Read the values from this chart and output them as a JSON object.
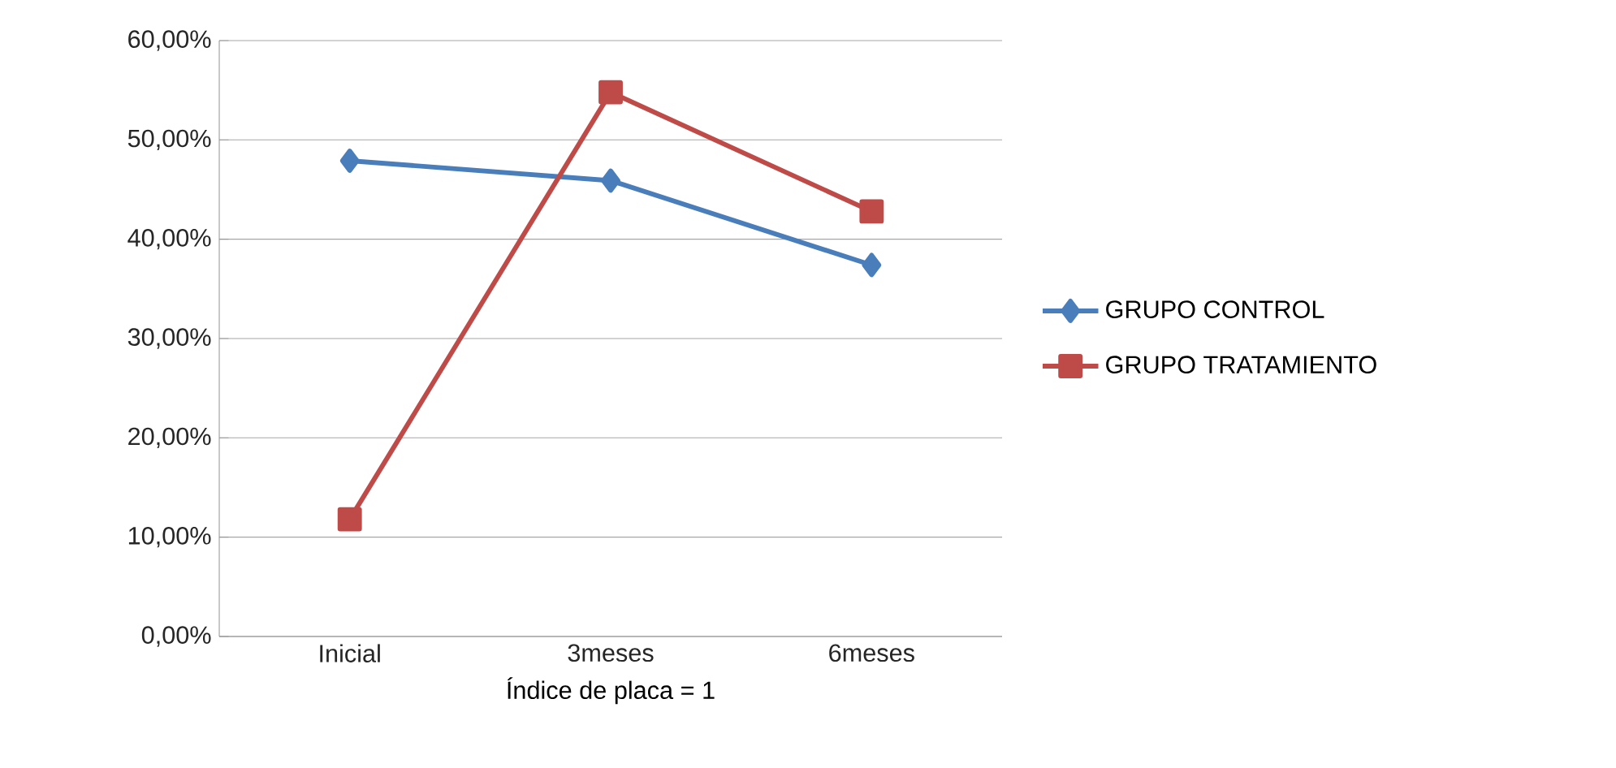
{
  "chart_data": {
    "type": "line",
    "xlabel": "Índice de placa = 1",
    "categories": [
      "Inicial",
      "3meses",
      "6meses"
    ],
    "series": [
      {
        "name": "GRUPO CONTROL",
        "color": "#4a7ebb",
        "marker": "diamond",
        "values": [
          47.9,
          45.9,
          37.4
        ]
      },
      {
        "name": "GRUPO TRATAMIENTO",
        "color": "#be4b48",
        "marker": "square",
        "values": [
          11.8,
          54.8,
          42.8
        ]
      }
    ],
    "ylim": [
      0,
      60
    ],
    "yticks": [
      {
        "value": 0,
        "label": "0,00%"
      },
      {
        "value": 10,
        "label": "10,00%"
      },
      {
        "value": 20,
        "label": "20,00%"
      },
      {
        "value": 30,
        "label": "30,00%"
      },
      {
        "value": 40,
        "label": "40,00%"
      },
      {
        "value": 50,
        "label": "50,00%"
      },
      {
        "value": 60,
        "label": "60,00%"
      }
    ],
    "grid": "y",
    "legend": "right",
    "line_style": "solid"
  }
}
